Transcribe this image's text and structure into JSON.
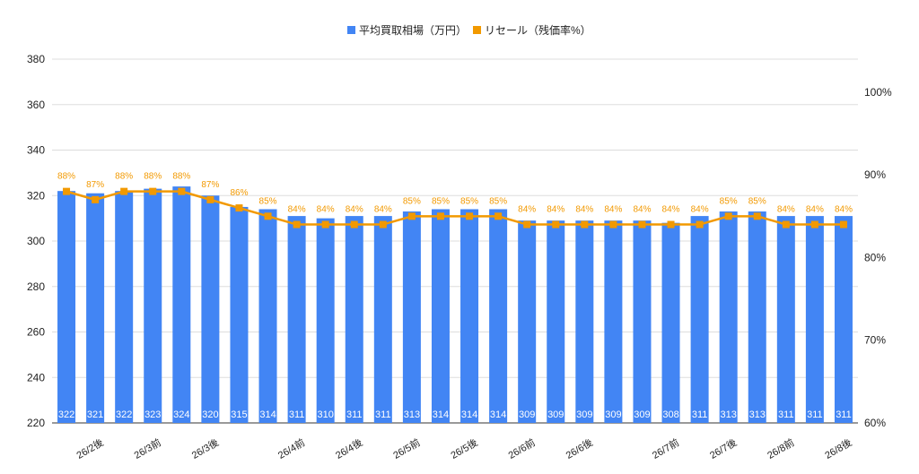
{
  "chart_data": {
    "type": "bar",
    "legend": {
      "position": "top",
      "bar_series_name": "平均買取相場（万円）",
      "line_series_name": "リセール（残価率%）"
    },
    "colors": {
      "bar": "#4285f4",
      "line": "#f29900",
      "grid": "#dddddd"
    },
    "y_left": {
      "min": 220,
      "max": 380,
      "ticks": [
        "220",
        "240",
        "260",
        "280",
        "300",
        "320",
        "340",
        "360",
        "380"
      ]
    },
    "y_right": {
      "min": 60,
      "max": 104,
      "ticks": [
        "60%",
        "70%",
        "80%",
        "90%",
        "100%"
      ]
    },
    "x_tick_labels": [
      {
        "i": 1,
        "text": "26/2後"
      },
      {
        "i": 3,
        "text": "26/3前"
      },
      {
        "i": 5,
        "text": "26/3後"
      },
      {
        "i": 8,
        "text": "26/4前"
      },
      {
        "i": 10,
        "text": "26/4後"
      },
      {
        "i": 12,
        "text": "26/5前"
      },
      {
        "i": 14,
        "text": "26/5後"
      },
      {
        "i": 16,
        "text": "26/6前"
      },
      {
        "i": 18,
        "text": "26/6後"
      },
      {
        "i": 21,
        "text": "26/7前"
      },
      {
        "i": 23,
        "text": "26/7後"
      },
      {
        "i": 25,
        "text": "26/8前"
      },
      {
        "i": 27,
        "text": "26/8後"
      }
    ],
    "series": [
      {
        "name": "平均買取相場（万円）",
        "type": "bar",
        "values": [
          322,
          321,
          322,
          323,
          324,
          320,
          315,
          314,
          311,
          310,
          311,
          311,
          313,
          314,
          314,
          314,
          309,
          309,
          309,
          309,
          309,
          308,
          311,
          313,
          313,
          311,
          311,
          311
        ]
      },
      {
        "name": "リセール（残価率%）",
        "type": "line",
        "values": [
          88,
          87,
          88,
          88,
          88,
          87,
          86,
          85,
          84,
          84,
          84,
          84,
          85,
          85,
          85,
          85,
          84,
          84,
          84,
          84,
          84,
          84,
          84,
          85,
          85,
          84,
          84,
          84
        ],
        "labels": [
          "88%",
          "87%",
          "88%",
          "88%",
          "88%",
          "87%",
          "86%",
          "85%",
          "84%",
          "84%",
          "84%",
          "84%",
          "85%",
          "85%",
          "85%",
          "85%",
          "84%",
          "84%",
          "84%",
          "84%",
          "84%",
          "84%",
          "84%",
          "85%",
          "85%",
          "84%",
          "84%",
          "84%"
        ]
      }
    ]
  }
}
